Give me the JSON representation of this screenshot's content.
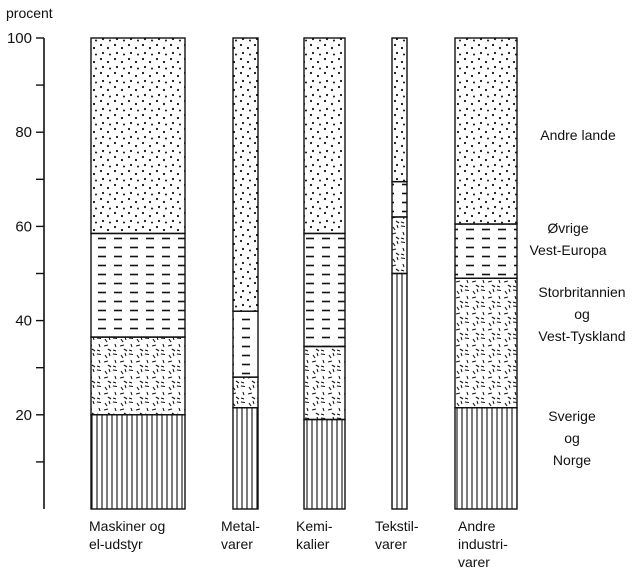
{
  "chart_data": {
    "type": "bar",
    "stacked": true,
    "y_unit_label": "procent",
    "ylim": [
      0,
      100
    ],
    "yticks": [
      20,
      40,
      60,
      80,
      100
    ],
    "grid": false,
    "legend_placement": "right, beside stacked segments",
    "categories": [
      {
        "lines": [
          "Maskiner og",
          "el-udstyr"
        ]
      },
      {
        "lines": [
          "Metal-",
          "varer"
        ]
      },
      {
        "lines": [
          "Kemi-",
          "kalier"
        ]
      },
      {
        "lines": [
          "Tekstil-",
          "varer"
        ]
      },
      {
        "lines": [
          "Andre",
          "industri-",
          "varer"
        ]
      }
    ],
    "series": [
      {
        "name": "Sverige og Norge",
        "label_lines": [
          "Sverige",
          "og",
          "Norge"
        ],
        "pattern": "vertical-lines",
        "values": [
          20,
          21.5,
          19,
          50,
          21.5
        ]
      },
      {
        "name": "Storbritannien og Vest-Tyskland",
        "label_lines": [
          "Storbritannien",
          "og",
          "Vest-Tyskland"
        ],
        "pattern": "dashes-random",
        "values": [
          16.5,
          6.5,
          15.5,
          12,
          27.5
        ]
      },
      {
        "name": "Øvrige Vest-Europa",
        "label_lines": [
          "Øvrige",
          "Vest-Europa"
        ],
        "pattern": "horizontal-dashes",
        "values": [
          22,
          14,
          24,
          7.5,
          11.5
        ]
      },
      {
        "name": "Andre lande",
        "label_lines": [
          "Andre lande"
        ],
        "pattern": "dots",
        "values": [
          41.5,
          58,
          41.5,
          30.5,
          39.5
        ]
      }
    ]
  }
}
